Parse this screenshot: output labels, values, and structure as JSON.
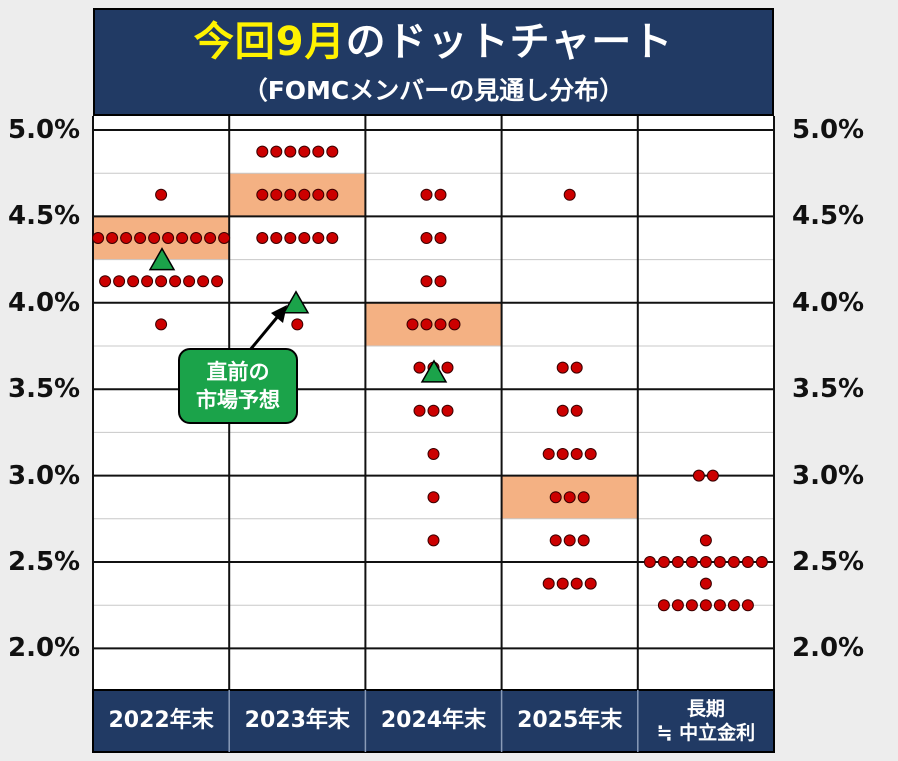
{
  "header": {
    "title_highlight": "今回9月",
    "title_rest": "のドットチャート",
    "subtitle": "（FOMCメンバーの見通し分布）"
  },
  "callout": {
    "line1": "直前の",
    "line2": "市場予想"
  },
  "colors": {
    "header_bg": "#213a64",
    "title_highlight": "#fff200",
    "dot": "#cc0000",
    "median_band": "#f4b183",
    "triangle": "#1ba34a"
  },
  "chart_data": {
    "type": "scatter",
    "title": "今回9月のドットチャート",
    "subtitle": "（FOMCメンバーの見通し分布）",
    "y_tick_labels": [
      "5.0%",
      "4.5%",
      "4.0%",
      "3.5%",
      "3.0%",
      "2.5%",
      "2.0%"
    ],
    "ylim": [
      1.75,
      5.0
    ],
    "grid": true,
    "categories": [
      {
        "label": "2022年末",
        "counts": [
          [
            4.625,
            1
          ],
          [
            4.375,
            10
          ],
          [
            4.125,
            9
          ],
          [
            3.875,
            1
          ]
        ],
        "median": 4.375,
        "market": 4.25
      },
      {
        "label": "2023年末",
        "counts": [
          [
            4.875,
            6
          ],
          [
            4.625,
            6
          ],
          [
            4.375,
            6
          ],
          [
            3.875,
            1
          ]
        ],
        "median": 4.625,
        "market": 4.0
      },
      {
        "label": "2024年末",
        "counts": [
          [
            4.625,
            2
          ],
          [
            4.375,
            2
          ],
          [
            4.125,
            2
          ],
          [
            3.875,
            4
          ],
          [
            3.625,
            3
          ],
          [
            3.375,
            3
          ],
          [
            3.125,
            1
          ],
          [
            2.875,
            1
          ],
          [
            2.625,
            1
          ]
        ],
        "median": 3.875,
        "market": 3.6
      },
      {
        "label": "2025年末",
        "counts": [
          [
            4.625,
            1
          ],
          [
            3.625,
            2
          ],
          [
            3.375,
            2
          ],
          [
            3.125,
            4
          ],
          [
            2.875,
            3
          ],
          [
            2.625,
            3
          ],
          [
            2.375,
            4
          ]
        ],
        "median": 2.875,
        "market": null
      },
      {
        "label": "長期",
        "label2": "≒ 中立金利",
        "counts": [
          [
            3.0,
            2
          ],
          [
            2.625,
            1
          ],
          [
            2.5,
            9
          ],
          [
            2.375,
            1
          ],
          [
            2.25,
            7
          ]
        ],
        "median": null,
        "market": null
      }
    ]
  }
}
